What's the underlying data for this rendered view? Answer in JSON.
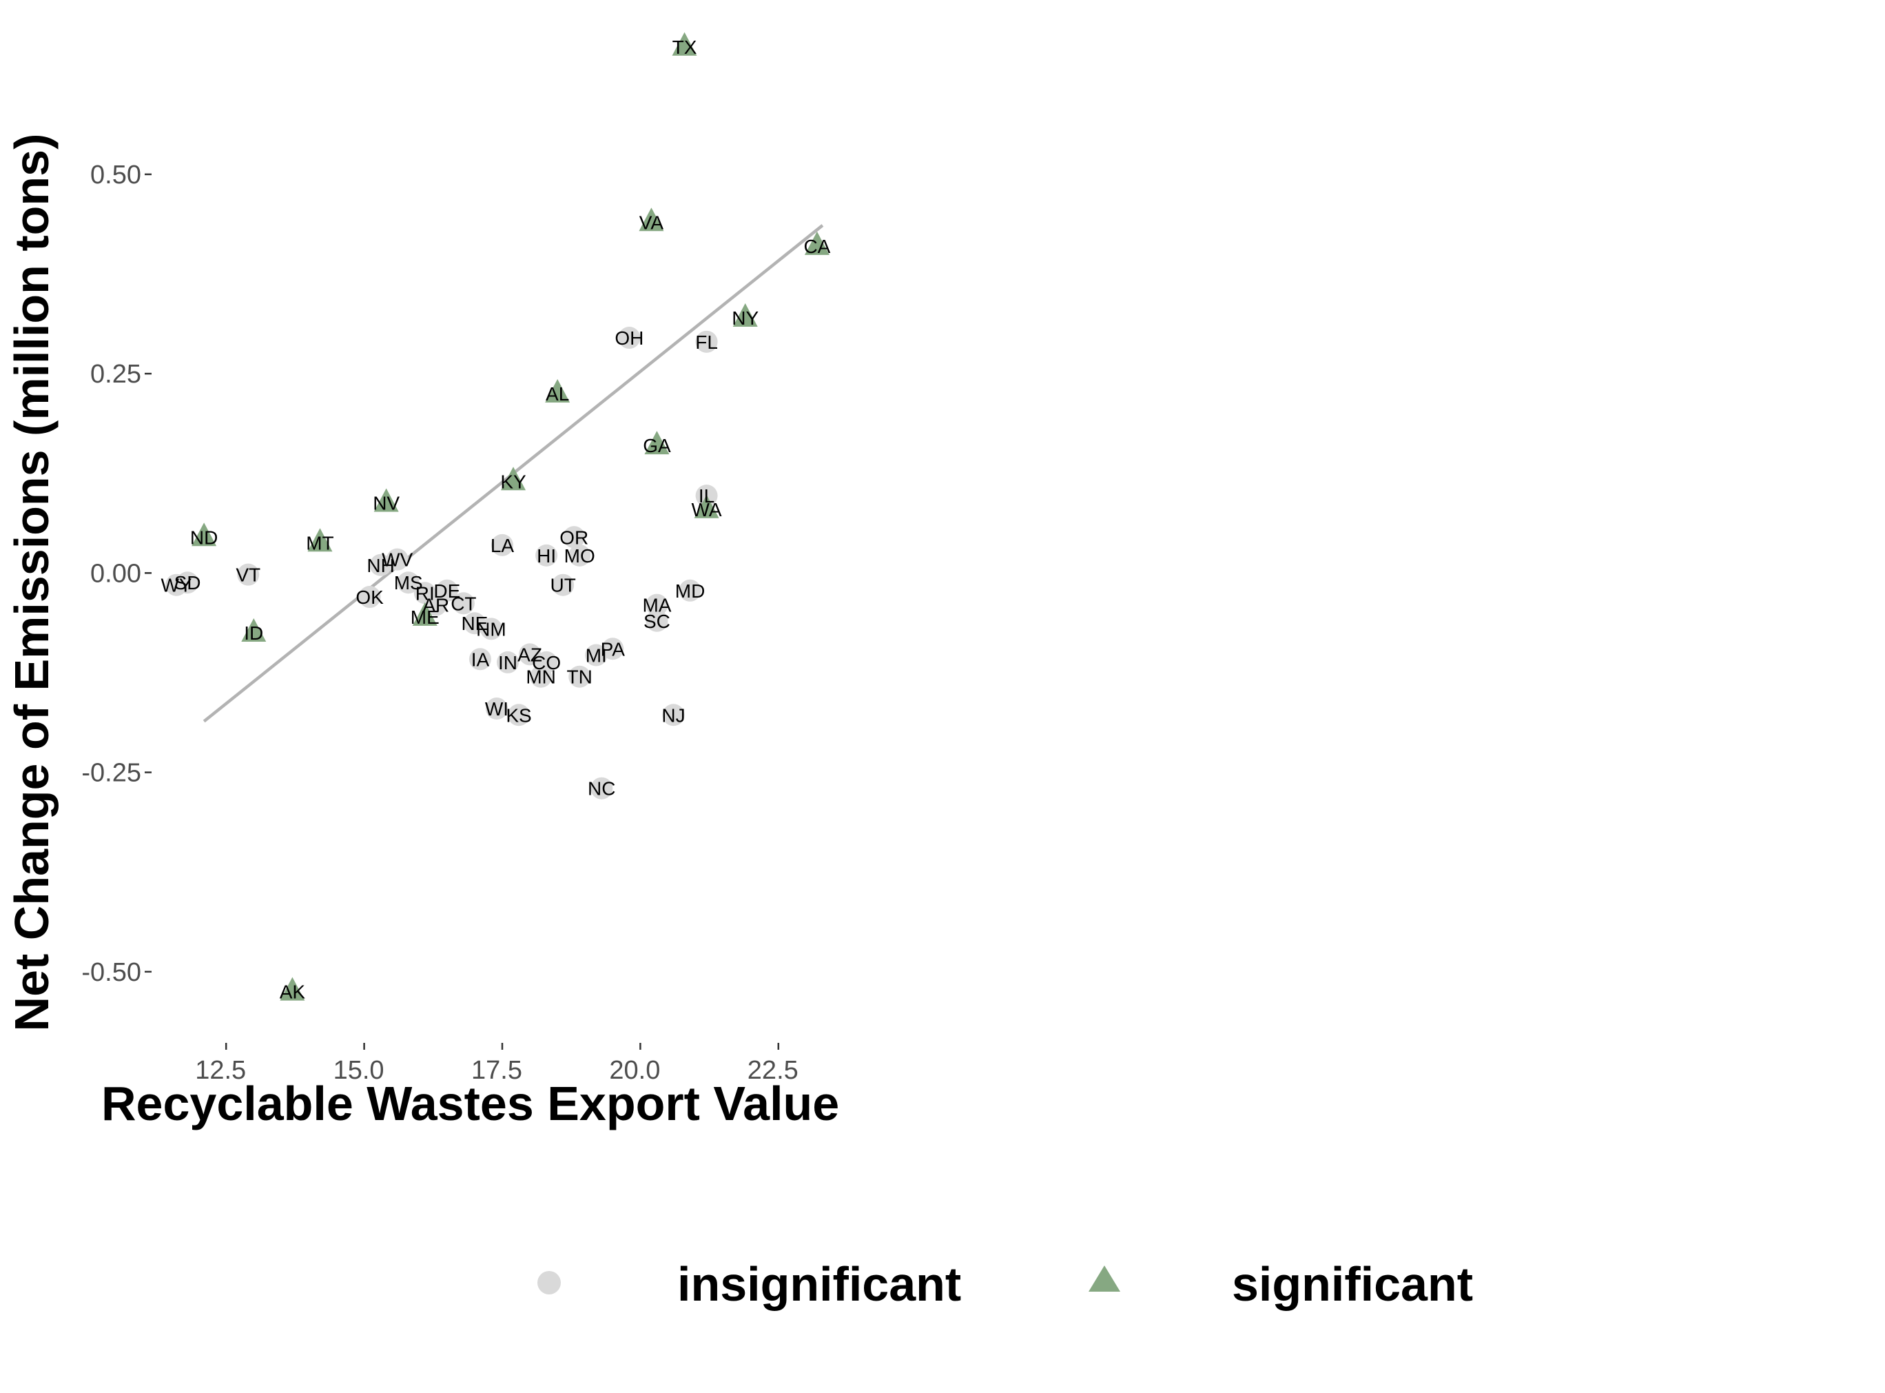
{
  "chart_data": {
    "type": "scatter",
    "title": "",
    "xlabel": "Recyclable Wastes Export Value",
    "ylabel": "Net Change of Emissions (million tons)",
    "xlim": [
      11.3,
      23.8
    ],
    "ylim": [
      -0.565,
      0.665
    ],
    "xticks": [
      12.5,
      15.0,
      17.5,
      20.0,
      22.5
    ],
    "xtick_labels": [
      "12.5",
      "15.0",
      "17.5",
      "20.0",
      "22.5"
    ],
    "yticks": [
      -0.5,
      -0.25,
      0.0,
      0.25,
      0.5
    ],
    "ytick_labels": [
      "-0.50",
      "-0.25",
      "0.00",
      "0.25",
      "0.50"
    ],
    "grid": false,
    "legend_position": "bottom",
    "colors": {
      "insignificant": "#d9d9d9",
      "significant": "#86a882",
      "trend": "#b3b3b3"
    },
    "trend_line": {
      "x": [
        12.1,
        23.3
      ],
      "y": [
        -0.186,
        0.436
      ]
    },
    "series": [
      {
        "name": "insignificant",
        "marker": "circle",
        "points": [
          {
            "label": "OH",
            "x": 19.8,
            "y": 0.295
          },
          {
            "label": "FL",
            "x": 21.2,
            "y": 0.29
          },
          {
            "label": "IL",
            "x": 21.2,
            "y": 0.097
          },
          {
            "label": "OR",
            "x": 18.8,
            "y": 0.045
          },
          {
            "label": "LA",
            "x": 17.5,
            "y": 0.035
          },
          {
            "label": "HI",
            "x": 18.3,
            "y": 0.022
          },
          {
            "label": "MO",
            "x": 18.9,
            "y": 0.022
          },
          {
            "label": "VT",
            "x": 12.9,
            "y": -0.002
          },
          {
            "label": "NH",
            "x": 15.3,
            "y": 0.01
          },
          {
            "label": "WV",
            "x": 15.6,
            "y": 0.017
          },
          {
            "label": "WY",
            "x": 11.6,
            "y": -0.015
          },
          {
            "label": "SD",
            "x": 11.8,
            "y": -0.012
          },
          {
            "label": "UT",
            "x": 18.6,
            "y": -0.015
          },
          {
            "label": "OK",
            "x": 15.1,
            "y": -0.03
          },
          {
            "label": "MS",
            "x": 15.8,
            "y": -0.012
          },
          {
            "label": "RI",
            "x": 16.1,
            "y": -0.025
          },
          {
            "label": "DE",
            "x": 16.5,
            "y": -0.022
          },
          {
            "label": "AR",
            "x": 16.3,
            "y": -0.04
          },
          {
            "label": "CT",
            "x": 16.8,
            "y": -0.038
          },
          {
            "label": "NE",
            "x": 17.0,
            "y": -0.063
          },
          {
            "label": "NM",
            "x": 17.3,
            "y": -0.07
          },
          {
            "label": "MD",
            "x": 20.9,
            "y": -0.022
          },
          {
            "label": "MA",
            "x": 20.3,
            "y": -0.04
          },
          {
            "label": "SC",
            "x": 20.3,
            "y": -0.06
          },
          {
            "label": "IA",
            "x": 17.1,
            "y": -0.108
          },
          {
            "label": "IN",
            "x": 17.6,
            "y": -0.112
          },
          {
            "label": "AZ",
            "x": 18.0,
            "y": -0.102
          },
          {
            "label": "CO",
            "x": 18.3,
            "y": -0.112
          },
          {
            "label": "MN",
            "x": 18.2,
            "y": -0.13
          },
          {
            "label": "TN",
            "x": 18.9,
            "y": -0.13
          },
          {
            "label": "MI",
            "x": 19.2,
            "y": -0.103
          },
          {
            "label": "PA",
            "x": 19.5,
            "y": -0.095
          },
          {
            "label": "WI",
            "x": 17.4,
            "y": -0.17
          },
          {
            "label": "KS",
            "x": 17.8,
            "y": -0.178
          },
          {
            "label": "NJ",
            "x": 20.6,
            "y": -0.178
          },
          {
            "label": "NC",
            "x": 19.3,
            "y": -0.27
          }
        ]
      },
      {
        "name": "significant",
        "marker": "triangle",
        "points": [
          {
            "label": "TX",
            "x": 20.8,
            "y": 0.66
          },
          {
            "label": "VA",
            "x": 20.2,
            "y": 0.44
          },
          {
            "label": "CA",
            "x": 23.2,
            "y": 0.41
          },
          {
            "label": "NY",
            "x": 21.9,
            "y": 0.32
          },
          {
            "label": "AL",
            "x": 18.5,
            "y": 0.225
          },
          {
            "label": "GA",
            "x": 20.3,
            "y": 0.16
          },
          {
            "label": "KY",
            "x": 17.7,
            "y": 0.115
          },
          {
            "label": "WA",
            "x": 21.2,
            "y": 0.08
          },
          {
            "label": "NV",
            "x": 15.4,
            "y": 0.088
          },
          {
            "label": "ND",
            "x": 12.1,
            "y": 0.045
          },
          {
            "label": "MT",
            "x": 14.2,
            "y": 0.038
          },
          {
            "label": "ID",
            "x": 13.0,
            "y": -0.075
          },
          {
            "label": "ME",
            "x": 16.1,
            "y": -0.055
          },
          {
            "label": "AK",
            "x": 13.7,
            "y": -0.525
          }
        ]
      }
    ],
    "legend": [
      {
        "label": "insignificant",
        "marker": "circle"
      },
      {
        "label": "significant",
        "marker": "triangle"
      }
    ]
  }
}
